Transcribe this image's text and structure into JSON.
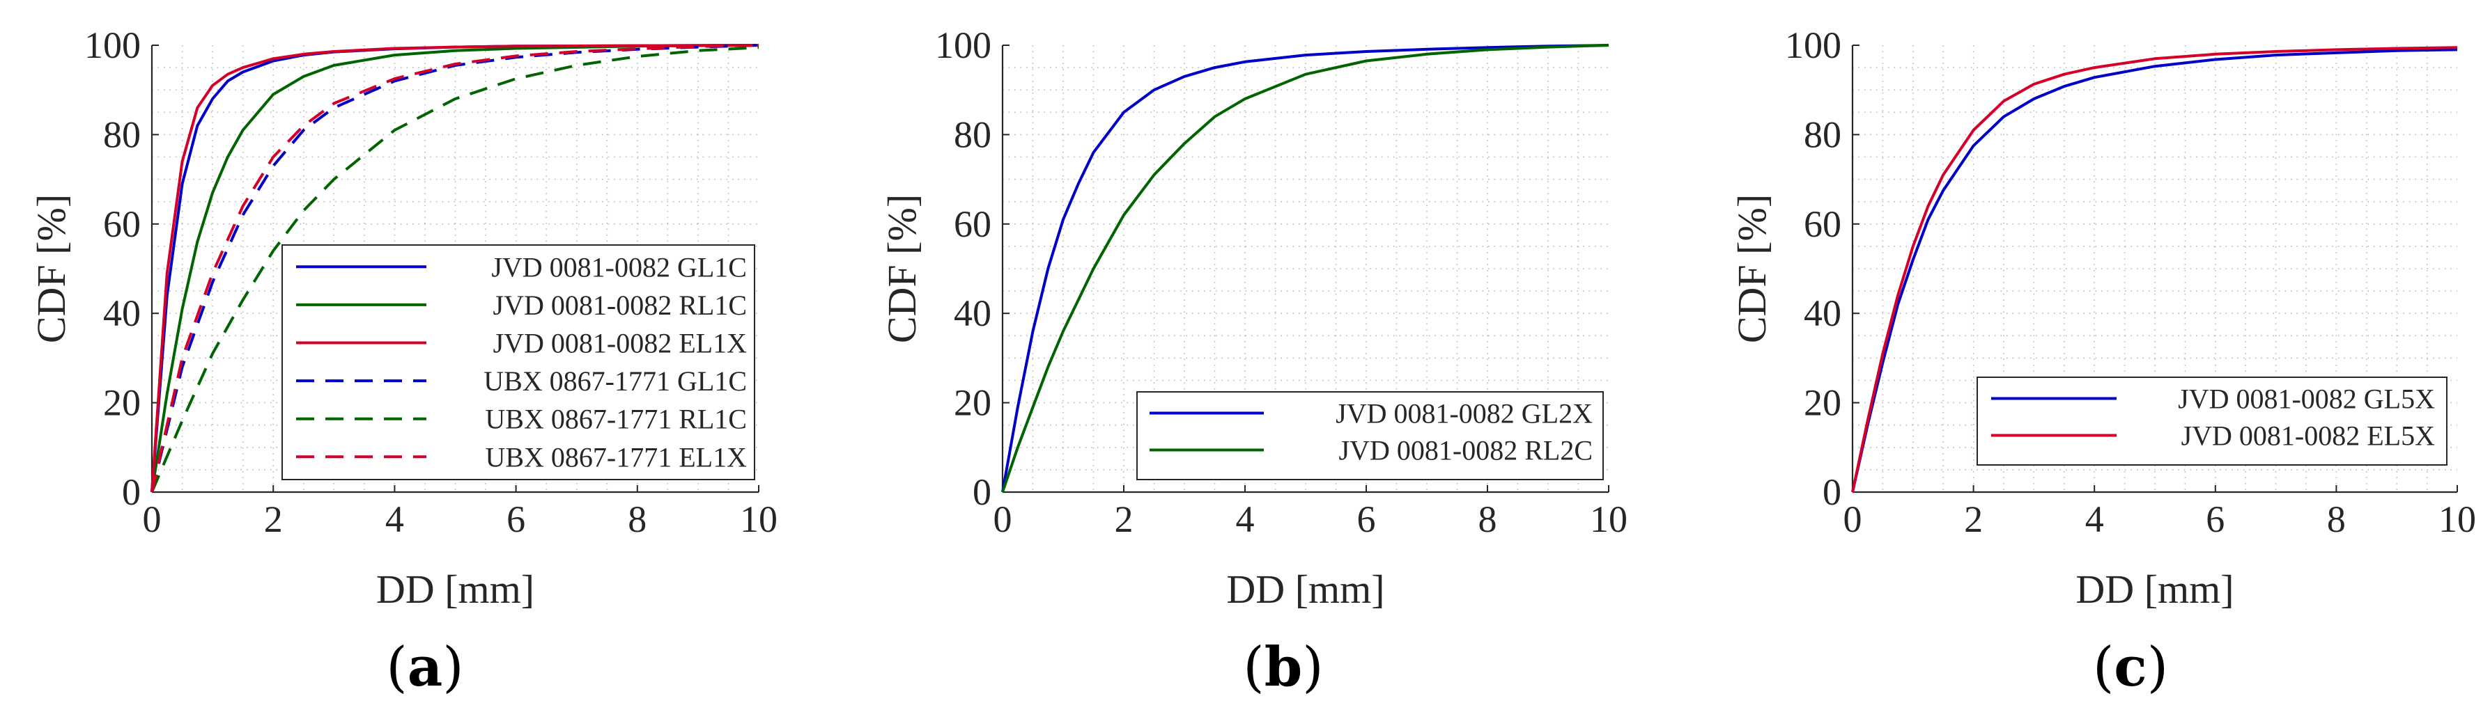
{
  "chart_data": [
    {
      "type": "line",
      "panel_label": "(a)",
      "panel_letter": "a",
      "xlabel": "DD [mm]",
      "ylabel": "CDF [%]",
      "xlim": [
        0,
        10
      ],
      "ylim": [
        0,
        100
      ],
      "xticks": [
        "0",
        "2",
        "4",
        "6",
        "8",
        "10"
      ],
      "yticks": [
        "0",
        "20",
        "40",
        "60",
        "80",
        "100"
      ],
      "grid": "dotted",
      "legend_position": "bottom-right",
      "series": [
        {
          "name": "JVD 0081-0082 GL1C",
          "color": "#0000c8",
          "style": "solid",
          "x": [
            0,
            0.25,
            0.5,
            0.75,
            1,
            1.25,
            1.5,
            2,
            2.5,
            3,
            4,
            5,
            6,
            8,
            10
          ],
          "y": [
            0,
            44,
            69,
            82,
            88,
            92,
            94,
            96.5,
            97.8,
            98.5,
            99.2,
            99.6,
            99.8,
            99.9,
            100
          ]
        },
        {
          "name": "JVD 0081-0082 RL1C",
          "color": "#006400",
          "style": "solid",
          "x": [
            0,
            0.25,
            0.5,
            0.75,
            1,
            1.25,
            1.5,
            2,
            2.5,
            3,
            4,
            5,
            6,
            8,
            10
          ],
          "y": [
            0,
            22,
            41,
            56,
            67,
            75,
            81,
            89,
            93,
            95.5,
            97.8,
            98.8,
            99.3,
            99.8,
            100
          ]
        },
        {
          "name": "JVD 0081-0082 EL1X",
          "color": "#d4002a",
          "style": "solid",
          "x": [
            0,
            0.25,
            0.5,
            0.75,
            1,
            1.25,
            1.5,
            2,
            2.5,
            3,
            4,
            5,
            6,
            8,
            10
          ],
          "y": [
            0,
            49,
            74,
            86,
            91,
            93.5,
            95,
            97,
            98,
            98.6,
            99.3,
            99.6,
            99.8,
            99.9,
            100
          ]
        },
        {
          "name": "UBX 0867-1771 GL1C",
          "color": "#0000c8",
          "style": "dashed",
          "x": [
            0,
            0.25,
            0.5,
            1,
            1.5,
            2,
            2.5,
            3,
            4,
            5,
            6,
            7,
            8,
            9,
            10
          ],
          "y": [
            0,
            14,
            28,
            47,
            62,
            73,
            81,
            86,
            92,
            95.5,
            97.3,
            98.4,
            99.1,
            99.6,
            100
          ]
        },
        {
          "name": "UBX 0867-1771 RL1C",
          "color": "#006400",
          "style": "dashed",
          "x": [
            0,
            0.25,
            0.5,
            1,
            1.5,
            2,
            2.5,
            3,
            4,
            5,
            6,
            7,
            8,
            9,
            10
          ],
          "y": [
            0,
            8,
            16,
            31,
            43,
            54,
            63,
            70,
            81,
            88,
            92.5,
            95.5,
            97.5,
            98.8,
            99.5
          ]
        },
        {
          "name": "UBX 0867-1771 EL1X",
          "color": "#d4002a",
          "style": "dashed",
          "x": [
            0,
            0.25,
            0.5,
            1,
            1.5,
            2,
            2.5,
            3,
            4,
            5,
            6,
            7,
            8,
            9,
            10
          ],
          "y": [
            0,
            15,
            30,
            49,
            64,
            75,
            82,
            87,
            92.5,
            95.8,
            97.6,
            98.6,
            99.2,
            99.7,
            100
          ]
        }
      ]
    },
    {
      "type": "line",
      "panel_label": "(b)",
      "panel_letter": "b",
      "xlabel": "DD [mm]",
      "ylabel": "CDF [%]",
      "xlim": [
        0,
        10
      ],
      "ylim": [
        0,
        100
      ],
      "xticks": [
        "0",
        "2",
        "4",
        "6",
        "8",
        "10"
      ],
      "yticks": [
        "0",
        "20",
        "40",
        "60",
        "80",
        "100"
      ],
      "grid": "dotted",
      "legend_position": "bottom-right",
      "series": [
        {
          "name": "JVD 0081-0082 GL2X",
          "color": "#0000c8",
          "style": "solid",
          "x": [
            0,
            0.25,
            0.5,
            0.75,
            1,
            1.25,
            1.5,
            2,
            2.5,
            3,
            3.5,
            4,
            5,
            6,
            7,
            8,
            9,
            10
          ],
          "y": [
            0,
            19,
            36,
            50,
            61,
            69,
            76,
            85,
            90,
            93,
            95,
            96.3,
            97.8,
            98.6,
            99.1,
            99.5,
            99.8,
            100
          ]
        },
        {
          "name": "JVD 0081-0082 RL2C",
          "color": "#006400",
          "style": "solid",
          "x": [
            0,
            0.25,
            0.5,
            0.75,
            1,
            1.5,
            2,
            2.5,
            3,
            3.5,
            4,
            5,
            6,
            7,
            8,
            9,
            10
          ],
          "y": [
            0,
            10,
            19,
            28,
            36,
            50,
            62,
            71,
            78,
            84,
            88,
            93.5,
            96.5,
            98,
            99,
            99.6,
            100
          ]
        }
      ]
    },
    {
      "type": "line",
      "panel_label": "(c)",
      "panel_letter": "c",
      "xlabel": "DD [mm]",
      "ylabel": "CDF [%]",
      "xlim": [
        0,
        10
      ],
      "ylim": [
        0,
        100
      ],
      "xticks": [
        "0",
        "2",
        "4",
        "6",
        "8",
        "10"
      ],
      "yticks": [
        "0",
        "20",
        "40",
        "60",
        "80",
        "100"
      ],
      "grid": "dotted",
      "legend_position": "bottom-right",
      "series": [
        {
          "name": "JVD 0081-0082 GL5X",
          "color": "#0000c8",
          "style": "solid",
          "x": [
            0,
            0.25,
            0.5,
            0.75,
            1,
            1.25,
            1.5,
            2,
            2.5,
            3,
            3.5,
            4,
            5,
            6,
            7,
            8,
            9,
            10
          ],
          "y": [
            0,
            15,
            29,
            42,
            52,
            61,
            67.5,
            77.5,
            84,
            88,
            90.8,
            92.8,
            95.3,
            96.8,
            97.8,
            98.3,
            98.8,
            99
          ]
        },
        {
          "name": "JVD 0081-0082 EL5X",
          "color": "#d4002a",
          "style": "solid",
          "x": [
            0,
            0.25,
            0.5,
            0.75,
            1,
            1.25,
            1.5,
            2,
            2.5,
            3,
            3.5,
            4,
            5,
            6,
            7,
            8,
            9,
            10
          ],
          "y": [
            0,
            16,
            31,
            44,
            55,
            64,
            71,
            81,
            87.5,
            91.3,
            93.5,
            95,
            97,
            98,
            98.6,
            99,
            99.3,
            99.5
          ]
        }
      ]
    }
  ]
}
